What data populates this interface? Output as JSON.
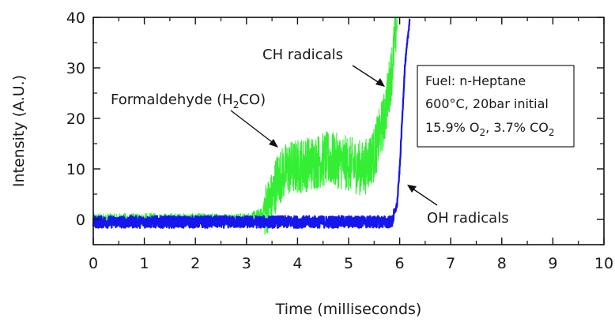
{
  "chart_data": {
    "type": "line",
    "title": "",
    "xlabel": "Time (milliseconds)",
    "ylabel": "Intensity (A.U.)",
    "xlim": [
      0,
      10
    ],
    "ylim": [
      -5,
      40
    ],
    "x_ticks": [
      "0",
      "1",
      "2",
      "3",
      "4",
      "5",
      "6",
      "7",
      "8",
      "9",
      "10"
    ],
    "y_ticks": [
      "0",
      "10",
      "20",
      "30",
      "40"
    ],
    "grid": false,
    "legend": "none",
    "series": [
      {
        "name": "Formaldehyde (H2CO)",
        "color": "#33ee33",
        "profile": [
          [
            0,
            0
          ],
          [
            3.0,
            0
          ],
          [
            3.3,
            1
          ],
          [
            3.5,
            4
          ],
          [
            3.6,
            8
          ],
          [
            3.8,
            10
          ],
          [
            4.2,
            11
          ],
          [
            4.6,
            12
          ],
          [
            5.0,
            11
          ],
          [
            5.3,
            10
          ],
          [
            5.5,
            13
          ],
          [
            5.7,
            20
          ],
          [
            5.85,
            30
          ],
          [
            5.95,
            40
          ]
        ],
        "noise_base": 1.2,
        "noise_active": 5.5
      },
      {
        "name": "OH radicals",
        "color": "#1515ee",
        "profile": [
          [
            0,
            -0.5
          ],
          [
            5.85,
            -0.5
          ],
          [
            5.95,
            3
          ],
          [
            6.0,
            10
          ],
          [
            6.05,
            20
          ],
          [
            6.1,
            30
          ],
          [
            6.2,
            40
          ]
        ],
        "noise_base": 1.2,
        "noise_active": 0.6
      }
    ],
    "annotations": {
      "formaldehyde": {
        "text": "Formaldehyde (H",
        "sub": "2",
        "tail": "CO)",
        "x": 3.65,
        "y": 14
      },
      "ch": {
        "text": "CH radicals",
        "x": 5.8,
        "y": 25
      },
      "oh": {
        "text": "OH radicals",
        "x": 6.05,
        "y": 6
      }
    },
    "infobox": {
      "line1": "Fuel: n-Heptane",
      "line2": "600°C, 20bar initial",
      "line3_a": "15.9% O",
      "line3_sub1": "2",
      "line3_b": ", 3.7% CO",
      "line3_sub2": "2"
    }
  }
}
